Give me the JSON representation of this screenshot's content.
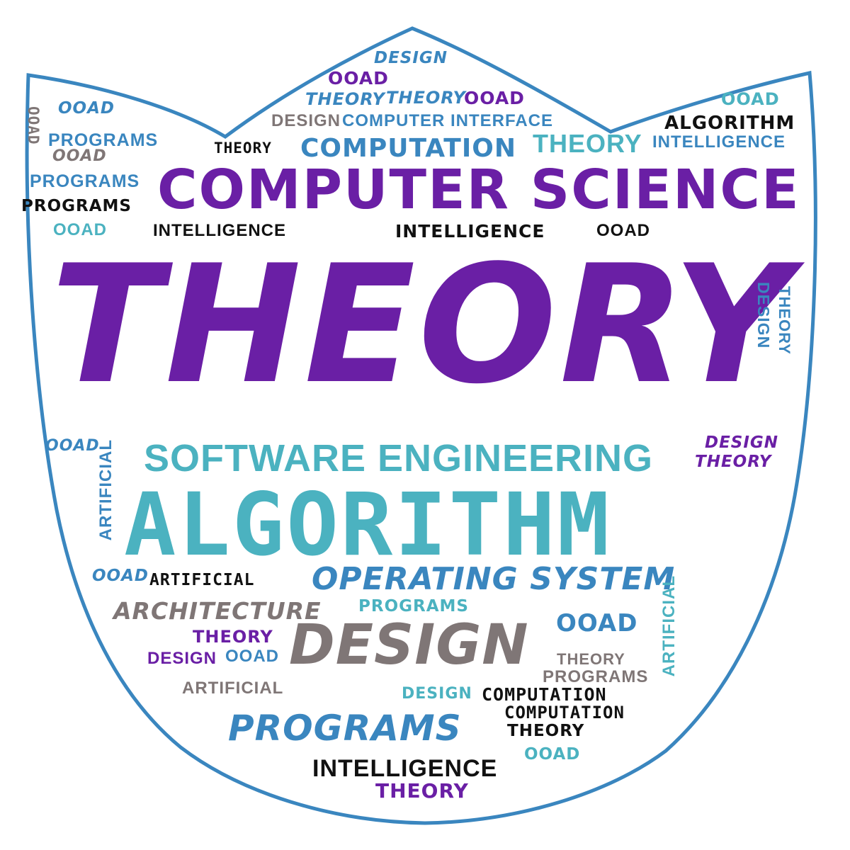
{
  "shield_color": "#3a86bf",
  "palette": {
    "purple": "#6a1fa5",
    "teal": "#4bb2c0",
    "blue": "#3a86bf",
    "black": "#111111",
    "gray": "#7f7676"
  },
  "words": {
    "w01": "DESIGN",
    "w02": "OOAD",
    "w03": "THEORY",
    "w04": "THEORY",
    "w05": "OOAD",
    "w06": "DESIGN",
    "w07": "COMPUTER INTERFACE",
    "w08": "OOAD",
    "w09": "OOAD",
    "w10": "OOAD",
    "w11": "PROGRAMS",
    "w12": "OOAD",
    "w13": "THEORY",
    "w14": "COMPUTATION",
    "w15": "THEORY",
    "w16": "ALGORITHM",
    "w17": "INTELLIGENCE",
    "w18": "PROGRAMS",
    "w19": "PROGRAMS",
    "w20": "COMPUTER SCIENCE",
    "w21": "OOAD",
    "w22": "INTELLIGENCE",
    "w23": "INTELLIGENCE",
    "w24": "OOAD",
    "w25": "THEORY",
    "w26": "DESIGN",
    "w27": "THEORY",
    "w28": "OOAD",
    "w29": "ARTIFICIAL",
    "w30": "SOFTWARE ENGINEERING",
    "w31": "DESIGN",
    "w32": "THEORY",
    "w33": "ALGORITHM",
    "w34": "OOAD",
    "w35": "ARTIFICIAL",
    "w36": "OPERATING SYSTEM",
    "w37": "ARCHITECTURE",
    "w38": "PROGRAMS",
    "w39": "OOAD",
    "w40": "ARTIFICIAL",
    "w41": "THEORY",
    "w42": "DESIGN",
    "w43": "DESIGN",
    "w44": "OOAD",
    "w45": "THEORY",
    "w46": "PROGRAMS",
    "w47": "ARTIFICIAL",
    "w48": "DESIGN",
    "w49": "COMPUTATION",
    "w50": "COMPUTATION",
    "w51": "PROGRAMS",
    "w52": "THEORY",
    "w53": "OOAD",
    "w54": "INTELLIGENCE",
    "w55": "THEORY"
  }
}
